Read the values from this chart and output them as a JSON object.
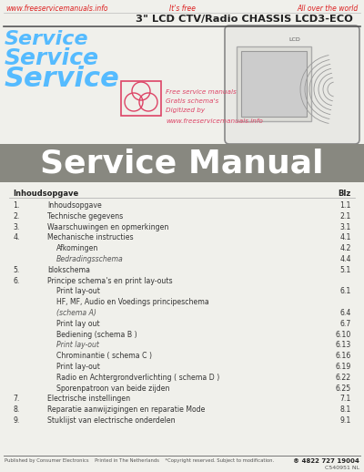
{
  "bg_color": "#f0f0eb",
  "header_texts": [
    "www.freeservicemanuals.info",
    "It's free",
    "All over the world"
  ],
  "header_color": "#dd2222",
  "title_line": "3\" LCD CTV/Radio CHASSIS LCD3-ECO",
  "title_color": "#222222",
  "service_words": [
    "Service",
    "Service",
    "Service"
  ],
  "service_color": "#55bbff",
  "service_sizes": [
    16,
    18,
    22
  ],
  "watermark_texts": [
    "Free service manuals",
    "Gratis schema's",
    "Digitized by",
    "www.freeservicemanuals.info"
  ],
  "watermark_color": "#dd4466",
  "banner_bg": "#888880",
  "banner_text": "Service Manual",
  "banner_text_color": "#ffffff",
  "toc_header_left": "Inhoudsopgave",
  "toc_header_right": "Blz",
  "toc_items": [
    [
      "1.",
      "Inhoudsopgave",
      "1.1",
      false,
      false
    ],
    [
      "2.",
      "Technische gegevens",
      "2.1",
      false,
      false
    ],
    [
      "3.",
      "Waarschuwingen en opmerkingen",
      "3.1",
      false,
      false
    ],
    [
      "4.",
      "Mechanische instructies",
      "4.1",
      false,
      false
    ],
    [
      "",
      "Afkomingen",
      "4.2",
      true,
      false
    ],
    [
      "",
      "Bedradingsschema",
      "4.4",
      true,
      true
    ],
    [
      "5.",
      "blokschema",
      "5.1",
      false,
      false
    ],
    [
      "6.",
      "Principe schema's en print lay-outs",
      "",
      false,
      false
    ],
    [
      "",
      "Print lay-out",
      "6.1",
      true,
      false
    ],
    [
      "",
      "HF, MF, Audio en Voedings principeschema",
      "",
      true,
      false
    ],
    [
      "",
      "(schema A)",
      "6.4",
      true,
      true
    ],
    [
      "",
      "Print lay out",
      "6.7",
      true,
      false
    ],
    [
      "",
      "Bediening (schema B )",
      "6.10",
      true,
      false
    ],
    [
      "",
      "Print lay-out",
      "6.13",
      true,
      true
    ],
    [
      "",
      "Chrominantie ( schema C )",
      "6.16",
      true,
      false
    ],
    [
      "",
      "Print lay-out",
      "6.19",
      true,
      false
    ],
    [
      "",
      "Radio en Achtergrondverlichting ( schema D )",
      "6.22",
      true,
      false
    ],
    [
      "",
      "Sporenpatroon van beide zijden",
      "6.25",
      true,
      false
    ],
    [
      "7.",
      "Electrische instellingen",
      "7.1",
      false,
      false
    ],
    [
      "8.",
      "Reparatie aanwijzigingen en reparatie Mode",
      "8.1",
      false,
      false
    ],
    [
      "9.",
      "Stuklijst van electrische onderdelen",
      "9.1",
      false,
      false
    ]
  ],
  "footer_left": "Published by Consumer Electronics    Printed in The Netherlands    *Copyright reserved. Subject to modification.",
  "footer_right": "® 4822 727 19004",
  "footer_bottom": "C540951 NL"
}
